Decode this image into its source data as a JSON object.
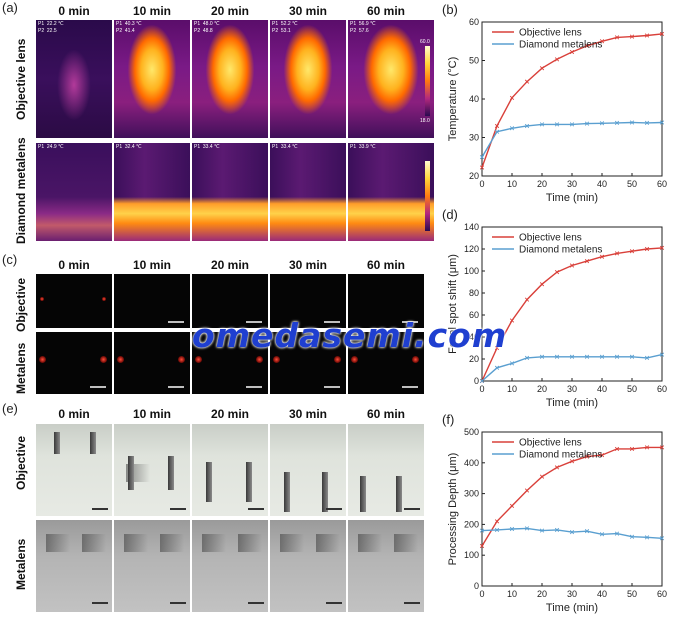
{
  "panels": {
    "a": {
      "label": "(a)",
      "columns": [
        "0 min",
        "10 min",
        "20 min",
        "30 min",
        "60 min"
      ],
      "rows": [
        "Objective lens",
        "Diamond metalens"
      ],
      "objective_readouts": [
        [
          "P1  22.2 ℃",
          "P2  22.5"
        ],
        [
          "P1  40.3 ℃",
          "P2  41.4"
        ],
        [
          "P1  48.0 ℃",
          "P2  48.8"
        ],
        [
          "P1  52.2 ℃",
          "P2  53.1"
        ],
        [
          "P1  56.9 ℃",
          "P2  57.6"
        ]
      ],
      "metalens_readouts": [
        "P1  24.9 ℃",
        "P1  32.4 ℃",
        "P1  33.4 ℃",
        "P1  33.4 ℃",
        "P1  33.9 ℃"
      ],
      "colorbar_top": "60.0",
      "colorbar_bottom": "18.0"
    },
    "c": {
      "label": "(c)",
      "columns": [
        "0 min",
        "10 min",
        "20 min",
        "30 min",
        "60 min"
      ],
      "rows": [
        "Objective",
        "Metalens"
      ]
    },
    "e": {
      "label": "(e)",
      "columns": [
        "0 min",
        "10 min",
        "20 min",
        "30 min",
        "60 min"
      ],
      "rows": [
        "Objective",
        "Metalens"
      ]
    }
  },
  "watermark": "omedasemi.com",
  "colors": {
    "objective": "#d9403a",
    "metalens": "#5a9fd0",
    "axis": "#222222"
  },
  "chart_data": [
    {
      "label": "(b)",
      "type": "line",
      "xlabel": "Time (min)",
      "ylabel": "Temperature (°C)",
      "xlim": [
        0,
        60
      ],
      "ylim": [
        20,
        60
      ],
      "xticks": [
        0,
        10,
        20,
        30,
        40,
        50,
        60
      ],
      "yticks": [
        20,
        30,
        40,
        50,
        60
      ],
      "legend": "top-left",
      "series": [
        {
          "name": "Objective lens",
          "x": [
            0,
            5,
            10,
            15,
            20,
            25,
            30,
            35,
            40,
            45,
            50,
            55,
            60
          ],
          "y": [
            22.2,
            33,
            40.3,
            44.5,
            48.0,
            50.3,
            52.2,
            53.8,
            55,
            56,
            56.2,
            56.5,
            56.9
          ]
        },
        {
          "name": "Diamond metalens",
          "x": [
            0,
            5,
            10,
            15,
            20,
            25,
            30,
            35,
            40,
            45,
            50,
            55,
            60
          ],
          "y": [
            24.9,
            31.5,
            32.4,
            33.0,
            33.4,
            33.4,
            33.4,
            33.6,
            33.7,
            33.8,
            33.9,
            33.8,
            33.9
          ]
        }
      ]
    },
    {
      "label": "(d)",
      "type": "line",
      "xlabel": "Time (min)",
      "ylabel": "Focal spot shift (μm)",
      "xlim": [
        0,
        60
      ],
      "ylim": [
        0,
        140
      ],
      "xticks": [
        0,
        10,
        20,
        30,
        40,
        50,
        60
      ],
      "yticks": [
        0,
        20,
        40,
        60,
        80,
        100,
        120,
        140
      ],
      "legend": "top-left",
      "series": [
        {
          "name": "Objective lens",
          "x": [
            0,
            5,
            10,
            15,
            20,
            25,
            30,
            35,
            40,
            45,
            50,
            55,
            60
          ],
          "y": [
            0,
            30,
            55,
            74,
            88,
            99,
            105,
            109,
            113,
            116,
            118,
            120,
            121
          ]
        },
        {
          "name": "Diamond metalens",
          "x": [
            0,
            5,
            10,
            15,
            20,
            25,
            30,
            35,
            40,
            45,
            50,
            55,
            60
          ],
          "y": [
            0,
            12,
            16,
            21,
            22,
            22,
            22,
            22,
            22,
            22,
            22,
            21,
            24
          ]
        }
      ]
    },
    {
      "label": "(f)",
      "type": "line",
      "xlabel": "Time (min)",
      "ylabel": "Processing Depth (μm)",
      "xlim": [
        0,
        60
      ],
      "ylim": [
        0,
        500
      ],
      "xticks": [
        0,
        10,
        20,
        30,
        40,
        50,
        60
      ],
      "yticks": [
        0,
        100,
        200,
        300,
        400,
        500
      ],
      "legend": "top-left",
      "series": [
        {
          "name": "Objective lens",
          "x": [
            0,
            5,
            10,
            15,
            20,
            25,
            30,
            35,
            40,
            45,
            50,
            55,
            60
          ],
          "y": [
            130,
            210,
            260,
            310,
            355,
            385,
            405,
            420,
            425,
            445,
            445,
            450,
            450
          ]
        },
        {
          "name": "Diamond metalens",
          "x": [
            0,
            5,
            10,
            15,
            20,
            25,
            30,
            35,
            40,
            45,
            50,
            55,
            60
          ],
          "y": [
            180,
            182,
            185,
            187,
            180,
            182,
            175,
            178,
            168,
            170,
            160,
            158,
            155
          ]
        }
      ]
    }
  ]
}
